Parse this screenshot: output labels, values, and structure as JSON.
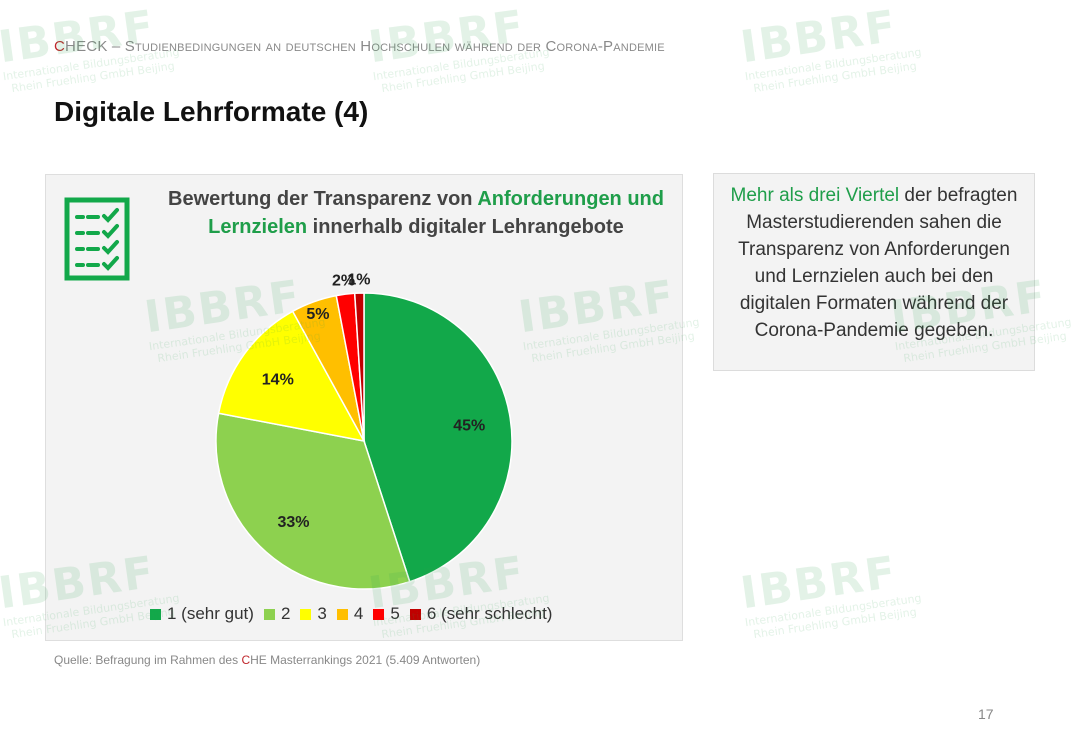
{
  "header": {
    "prefix_red": "C",
    "prefix_rest": "HECK",
    "text": " – Studienbedingungen an deutschen Hochschulen während der Corona-Pandemie"
  },
  "page_title": "Digitale Lehrformate (4)",
  "chart_panel": {
    "title_part1": "Bewertung der Transparenz von ",
    "title_highlight1": "Anforderungen und",
    "title_highlight2": "Lernzielen",
    "title_part2": " innerhalb digitaler Lehrangebote",
    "icon": "checklist-icon"
  },
  "chart_data": {
    "type": "pie",
    "title": "Bewertung der Transparenz von Anforderungen und Lernzielen innerhalb digitaler Lehrangebote",
    "categories": [
      "1 (sehr gut)",
      "2",
      "3",
      "4",
      "5",
      "6 (sehr schlecht)"
    ],
    "values": [
      45,
      33,
      14,
      5,
      2,
      1
    ],
    "labels": [
      "45%",
      "33%",
      "14%",
      "5%",
      "2%",
      "1%"
    ],
    "colors": [
      "#12a84a",
      "#8dd14f",
      "#ffff00",
      "#ffbf00",
      "#ff0000",
      "#c00000"
    ],
    "legend_position": "bottom"
  },
  "info_box": {
    "highlight": "Mehr als drei Viertel",
    "text": " der befragten Masterstudierenden sahen die Transparenz von Anforderungen und Lernzielen auch bei den digitalen Formaten während der Corona-Pandemie gegeben."
  },
  "source": {
    "before": "Quelle: Befragung im Rahmen des ",
    "red": "C",
    "after": "HE Masterrankings 2021 (5.409 Antworten)"
  },
  "page_number": "17",
  "watermark": {
    "logo": "IBBRF",
    "line1": "Internationale Bildungsberatung",
    "line2": "Rhein Fruehling GmbH Beijing"
  }
}
